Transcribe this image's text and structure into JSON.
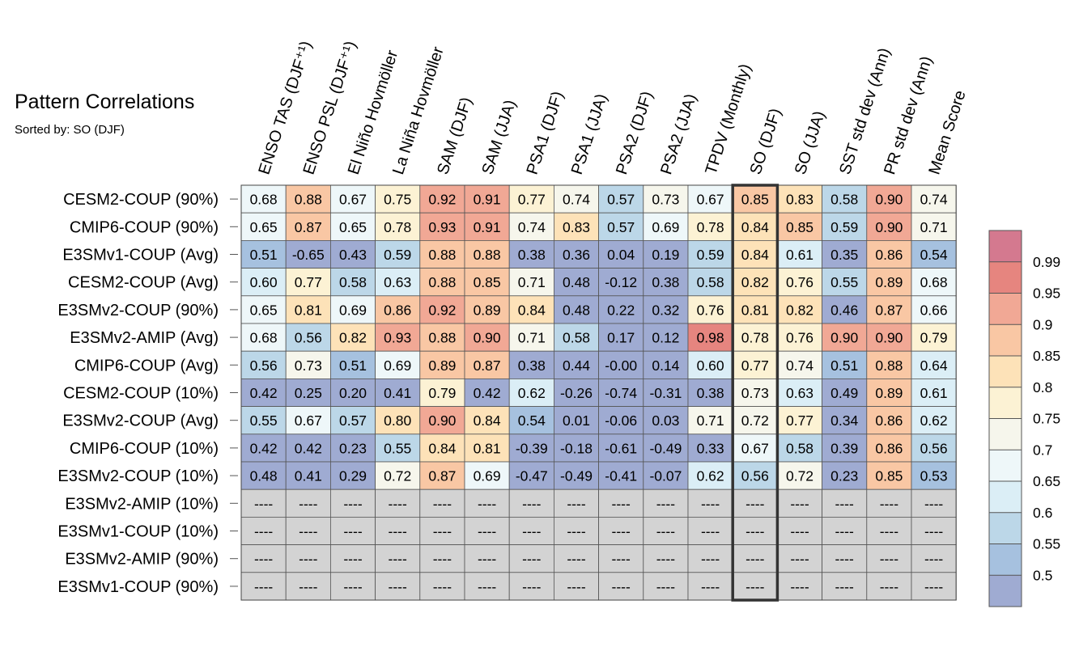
{
  "title": "Pattern Correlations",
  "subtitle": "Sorted by: SO (DJF)",
  "chart_data": {
    "type": "heatmap",
    "columns": [
      "ENSO TAS (DJF⁺¹)",
      "ENSO PSL (DJF⁺¹)",
      "El Niño Hovmöller",
      "La Niña Hovmöller",
      "SAM (DJF)",
      "SAM (JJA)",
      "PSA1 (DJF)",
      "PSA1 (JJA)",
      "PSA2 (DJF)",
      "PSA2 (JJA)",
      "TPDV (Monthly)",
      "SO (DJF)",
      "SO (JJA)",
      "SST std dev (Ann)",
      "PR std dev (Ann)",
      "Mean Score"
    ],
    "rows": [
      "CESM2-COUP (90%)",
      "CMIP6-COUP (90%)",
      "E3SMv1-COUP (Avg)",
      "CESM2-COUP (Avg)",
      "E3SMv2-COUP (90%)",
      "E3SMv2-AMIP (Avg)",
      "CMIP6-COUP (Avg)",
      "CESM2-COUP (10%)",
      "E3SMv2-COUP (Avg)",
      "CMIP6-COUP (10%)",
      "E3SMv2-COUP (10%)",
      "E3SMv2-AMIP (10%)",
      "E3SMv1-COUP (10%)",
      "E3SMv2-AMIP (90%)",
      "E3SMv1-COUP (90%)"
    ],
    "values": [
      [
        "0.68",
        "0.88",
        "0.67",
        "0.75",
        "0.92",
        "0.91",
        "0.77",
        "0.74",
        "0.57",
        "0.73",
        "0.67",
        "0.85",
        "0.83",
        "0.58",
        "0.90",
        "0.74"
      ],
      [
        "0.65",
        "0.87",
        "0.65",
        "0.78",
        "0.93",
        "0.91",
        "0.74",
        "0.83",
        "0.57",
        "0.69",
        "0.78",
        "0.84",
        "0.85",
        "0.59",
        "0.90",
        "0.71"
      ],
      [
        "0.51",
        "-0.65",
        "0.43",
        "0.59",
        "0.88",
        "0.88",
        "0.38",
        "0.36",
        "0.04",
        "0.19",
        "0.59",
        "0.84",
        "0.61",
        "0.35",
        "0.86",
        "0.54"
      ],
      [
        "0.60",
        "0.77",
        "0.58",
        "0.63",
        "0.88",
        "0.85",
        "0.71",
        "0.48",
        "-0.12",
        "0.38",
        "0.58",
        "0.82",
        "0.76",
        "0.55",
        "0.89",
        "0.68"
      ],
      [
        "0.65",
        "0.81",
        "0.69",
        "0.86",
        "0.92",
        "0.89",
        "0.84",
        "0.48",
        "0.22",
        "0.32",
        "0.76",
        "0.81",
        "0.82",
        "0.46",
        "0.87",
        "0.66"
      ],
      [
        "0.68",
        "0.56",
        "0.82",
        "0.93",
        "0.88",
        "0.90",
        "0.71",
        "0.58",
        "0.17",
        "0.12",
        "0.98",
        "0.78",
        "0.76",
        "0.90",
        "0.90",
        "0.79"
      ],
      [
        "0.56",
        "0.73",
        "0.51",
        "0.69",
        "0.89",
        "0.87",
        "0.38",
        "0.44",
        "-0.00",
        "0.14",
        "0.60",
        "0.77",
        "0.74",
        "0.51",
        "0.88",
        "0.64"
      ],
      [
        "0.42",
        "0.25",
        "0.20",
        "0.41",
        "0.79",
        "0.42",
        "0.62",
        "-0.26",
        "-0.74",
        "-0.31",
        "0.38",
        "0.73",
        "0.63",
        "0.49",
        "0.89",
        "0.61"
      ],
      [
        "0.55",
        "0.67",
        "0.57",
        "0.80",
        "0.90",
        "0.84",
        "0.54",
        "0.01",
        "-0.06",
        "0.03",
        "0.71",
        "0.72",
        "0.77",
        "0.34",
        "0.86",
        "0.62"
      ],
      [
        "0.42",
        "0.42",
        "0.23",
        "0.55",
        "0.84",
        "0.81",
        "-0.39",
        "-0.18",
        "-0.61",
        "-0.49",
        "0.33",
        "0.67",
        "0.58",
        "0.39",
        "0.86",
        "0.56"
      ],
      [
        "0.48",
        "0.41",
        "0.29",
        "0.72",
        "0.87",
        "0.69",
        "-0.47",
        "-0.49",
        "-0.41",
        "-0.07",
        "0.62",
        "0.56",
        "0.72",
        "0.23",
        "0.85",
        "0.53"
      ],
      [
        "----",
        "----",
        "----",
        "----",
        "----",
        "----",
        "----",
        "----",
        "----",
        "----",
        "----",
        "----",
        "----",
        "----",
        "----",
        "----"
      ],
      [
        "----",
        "----",
        "----",
        "----",
        "----",
        "----",
        "----",
        "----",
        "----",
        "----",
        "----",
        "----",
        "----",
        "----",
        "----",
        "----"
      ],
      [
        "----",
        "----",
        "----",
        "----",
        "----",
        "----",
        "----",
        "----",
        "----",
        "----",
        "----",
        "----",
        "----",
        "----",
        "----",
        "----"
      ],
      [
        "----",
        "----",
        "----",
        "----",
        "----",
        "----",
        "----",
        "----",
        "----",
        "----",
        "----",
        "----",
        "----",
        "----",
        "----",
        "----"
      ]
    ],
    "highlighted_column": "SO (DJF)",
    "missing_color": "#d3d3d3",
    "colorbar": {
      "labels": [
        "0.99",
        "0.95",
        "0.9",
        "0.85",
        "0.8",
        "0.75",
        "0.7",
        "0.65",
        "0.6",
        "0.55",
        "0.5"
      ],
      "levels": [
        0.5,
        0.55,
        0.6,
        0.65,
        0.7,
        0.75,
        0.8,
        0.85,
        0.9,
        0.95,
        0.99
      ],
      "colors": [
        "#9fabd2",
        "#a6c1df",
        "#bcd7e8",
        "#dbeef6",
        "#eef7f9",
        "#f6f6ec",
        "#fcf2d4",
        "#fde2b8",
        "#f9c7a4",
        "#f1a895",
        "#e6857f",
        "#d4798f"
      ]
    }
  }
}
